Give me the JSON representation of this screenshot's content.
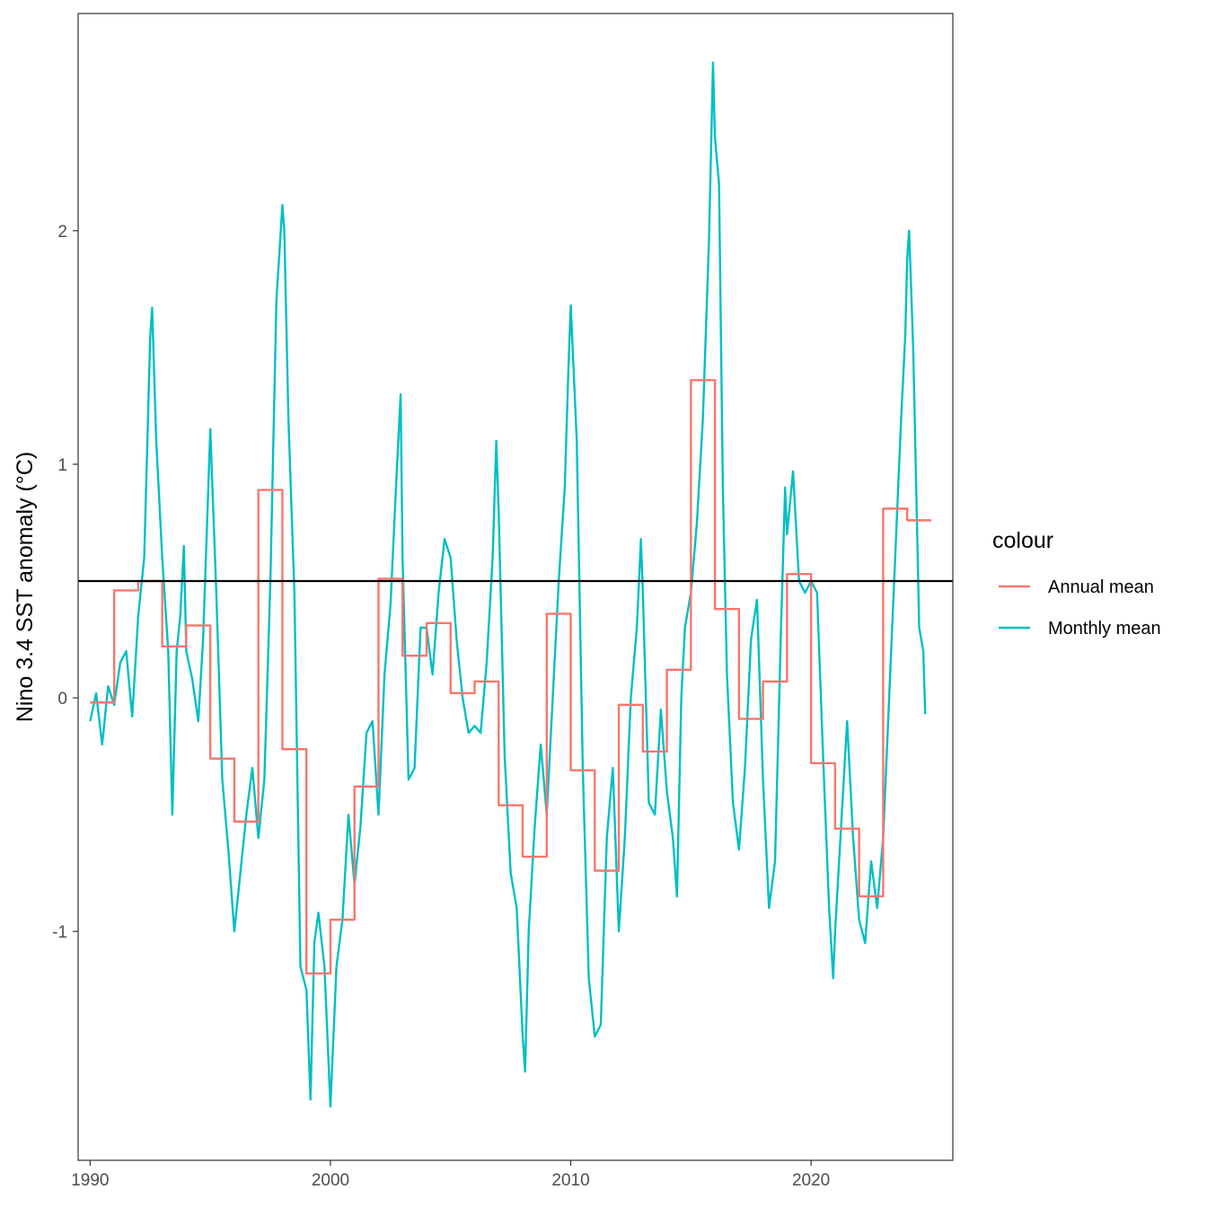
{
  "chart_data": {
    "type": "line",
    "title": "",
    "xlabel": "",
    "ylabel": "Nino 3.4 SST anomaly (°C)",
    "xlim": [
      1989.5,
      2025.9
    ],
    "ylim": [
      -1.98,
      2.93
    ],
    "x_ticks": [
      1990,
      2000,
      2010,
      2020
    ],
    "x_tick_labels": [
      "1990",
      "2000",
      "2010",
      "2020"
    ],
    "y_ticks": [
      -1,
      0,
      1,
      2
    ],
    "y_tick_labels": [
      "-1",
      "0",
      "1",
      "2"
    ],
    "grid": false,
    "legend": {
      "title": "colour",
      "position": "right"
    },
    "reference_line": {
      "y": 0.5,
      "color": "#000000"
    },
    "series": [
      {
        "name": "Annual mean",
        "color": "#F8766D",
        "style": "step",
        "years": [
          1990,
          1991,
          1992,
          1993,
          1994,
          1995,
          1996,
          1997,
          1998,
          1999,
          2000,
          2001,
          2002,
          2003,
          2004,
          2005,
          2006,
          2007,
          2008,
          2009,
          2010,
          2011,
          2012,
          2013,
          2014,
          2015,
          2016,
          2017,
          2018,
          2019,
          2020,
          2021,
          2022,
          2023,
          2024
        ],
        "values": [
          -0.02,
          0.46,
          0.5,
          0.22,
          0.31,
          -0.26,
          -0.53,
          0.89,
          -0.22,
          -1.18,
          -0.95,
          -0.38,
          0.51,
          0.18,
          0.32,
          0.02,
          0.07,
          -0.46,
          -0.68,
          0.36,
          -0.31,
          -0.74,
          -0.03,
          -0.23,
          0.12,
          1.36,
          0.38,
          -0.09,
          0.07,
          0.53,
          -0.28,
          -0.56,
          -0.85,
          0.81,
          0.76
        ]
      },
      {
        "name": "Monthly mean",
        "color": "#00BFC4",
        "style": "line",
        "points": [
          [
            1990.0,
            -0.1
          ],
          [
            1990.25,
            0.02
          ],
          [
            1990.5,
            -0.2
          ],
          [
            1990.75,
            0.05
          ],
          [
            1991.0,
            -0.03
          ],
          [
            1991.25,
            0.15
          ],
          [
            1991.5,
            0.2
          ],
          [
            1991.75,
            -0.08
          ],
          [
            1992.0,
            0.35
          ],
          [
            1992.25,
            0.6
          ],
          [
            1992.5,
            1.55
          ],
          [
            1992.58,
            1.67
          ],
          [
            1992.75,
            1.1
          ],
          [
            1993.0,
            0.6
          ],
          [
            1993.25,
            0.2
          ],
          [
            1993.42,
            -0.5
          ],
          [
            1993.6,
            0.2
          ],
          [
            1993.75,
            0.35
          ],
          [
            1993.9,
            0.65
          ],
          [
            1994.0,
            0.2
          ],
          [
            1994.25,
            0.08
          ],
          [
            1994.5,
            -0.1
          ],
          [
            1994.7,
            0.25
          ],
          [
            1995.0,
            1.15
          ],
          [
            1995.25,
            0.45
          ],
          [
            1995.5,
            -0.35
          ],
          [
            1995.75,
            -0.65
          ],
          [
            1996.0,
            -1.0
          ],
          [
            1996.25,
            -0.75
          ],
          [
            1996.5,
            -0.5
          ],
          [
            1996.75,
            -0.3
          ],
          [
            1997.0,
            -0.6
          ],
          [
            1997.25,
            -0.35
          ],
          [
            1997.5,
            0.5
          ],
          [
            1997.75,
            1.7
          ],
          [
            1998.0,
            2.11
          ],
          [
            1998.08,
            2.0
          ],
          [
            1998.25,
            1.2
          ],
          [
            1998.5,
            0.45
          ],
          [
            1998.75,
            -1.15
          ],
          [
            1999.0,
            -1.25
          ],
          [
            1999.17,
            -1.72
          ],
          [
            1999.33,
            -1.05
          ],
          [
            1999.5,
            -0.92
          ],
          [
            1999.75,
            -1.15
          ],
          [
            2000.0,
            -1.75
          ],
          [
            2000.25,
            -1.15
          ],
          [
            2000.5,
            -0.95
          ],
          [
            2000.75,
            -0.5
          ],
          [
            2001.0,
            -0.8
          ],
          [
            2001.25,
            -0.55
          ],
          [
            2001.5,
            -0.15
          ],
          [
            2001.75,
            -0.1
          ],
          [
            2002.0,
            -0.5
          ],
          [
            2002.25,
            0.1
          ],
          [
            2002.5,
            0.4
          ],
          [
            2002.75,
            0.95
          ],
          [
            2002.92,
            1.3
          ],
          [
            2003.0,
            0.6
          ],
          [
            2003.25,
            -0.35
          ],
          [
            2003.5,
            -0.3
          ],
          [
            2003.75,
            0.3
          ],
          [
            2004.0,
            0.3
          ],
          [
            2004.25,
            0.1
          ],
          [
            2004.5,
            0.45
          ],
          [
            2004.75,
            0.68
          ],
          [
            2005.0,
            0.6
          ],
          [
            2005.25,
            0.25
          ],
          [
            2005.5,
            0.0
          ],
          [
            2005.75,
            -0.15
          ],
          [
            2006.0,
            -0.12
          ],
          [
            2006.25,
            -0.15
          ],
          [
            2006.5,
            0.15
          ],
          [
            2006.75,
            0.6
          ],
          [
            2006.9,
            1.1
          ],
          [
            2007.0,
            0.8
          ],
          [
            2007.25,
            -0.25
          ],
          [
            2007.5,
            -0.75
          ],
          [
            2007.75,
            -0.9
          ],
          [
            2008.0,
            -1.45
          ],
          [
            2008.1,
            -1.6
          ],
          [
            2008.25,
            -1.0
          ],
          [
            2008.5,
            -0.55
          ],
          [
            2008.75,
            -0.2
          ],
          [
            2009.0,
            -0.5
          ],
          [
            2009.25,
            0.0
          ],
          [
            2009.5,
            0.5
          ],
          [
            2009.75,
            0.9
          ],
          [
            2009.9,
            1.4
          ],
          [
            2010.0,
            1.68
          ],
          [
            2010.25,
            1.1
          ],
          [
            2010.5,
            -0.3
          ],
          [
            2010.75,
            -1.2
          ],
          [
            2011.0,
            -1.45
          ],
          [
            2011.25,
            -1.4
          ],
          [
            2011.5,
            -0.6
          ],
          [
            2011.75,
            -0.3
          ],
          [
            2012.0,
            -1.0
          ],
          [
            2012.25,
            -0.6
          ],
          [
            2012.5,
            0.0
          ],
          [
            2012.75,
            0.3
          ],
          [
            2012.92,
            0.68
          ],
          [
            2013.0,
            0.45
          ],
          [
            2013.25,
            -0.45
          ],
          [
            2013.5,
            -0.5
          ],
          [
            2013.75,
            -0.05
          ],
          [
            2014.0,
            -0.4
          ],
          [
            2014.25,
            -0.6
          ],
          [
            2014.42,
            -0.85
          ],
          [
            2014.6,
            0.0
          ],
          [
            2014.75,
            0.3
          ],
          [
            2015.0,
            0.45
          ],
          [
            2015.25,
            0.75
          ],
          [
            2015.5,
            1.2
          ],
          [
            2015.75,
            1.95
          ],
          [
            2015.92,
            2.72
          ],
          [
            2016.0,
            2.4
          ],
          [
            2016.17,
            2.2
          ],
          [
            2016.33,
            0.9
          ],
          [
            2016.5,
            0.1
          ],
          [
            2016.75,
            -0.45
          ],
          [
            2017.0,
            -0.65
          ],
          [
            2017.25,
            -0.3
          ],
          [
            2017.5,
            0.25
          ],
          [
            2017.75,
            0.42
          ],
          [
            2018.0,
            -0.35
          ],
          [
            2018.25,
            -0.9
          ],
          [
            2018.5,
            -0.7
          ],
          [
            2018.75,
            0.3
          ],
          [
            2018.92,
            0.9
          ],
          [
            2019.0,
            0.7
          ],
          [
            2019.25,
            0.97
          ],
          [
            2019.5,
            0.5
          ],
          [
            2019.75,
            0.45
          ],
          [
            2020.0,
            0.5
          ],
          [
            2020.25,
            0.45
          ],
          [
            2020.5,
            -0.25
          ],
          [
            2020.75,
            -0.9
          ],
          [
            2020.92,
            -1.2
          ],
          [
            2021.0,
            -1.0
          ],
          [
            2021.25,
            -0.55
          ],
          [
            2021.5,
            -0.1
          ],
          [
            2021.75,
            -0.6
          ],
          [
            2022.0,
            -0.95
          ],
          [
            2022.25,
            -1.05
          ],
          [
            2022.5,
            -0.7
          ],
          [
            2022.75,
            -0.9
          ],
          [
            2023.0,
            -0.6
          ],
          [
            2023.25,
            0.0
          ],
          [
            2023.5,
            0.6
          ],
          [
            2023.75,
            1.2
          ],
          [
            2023.92,
            1.55
          ],
          [
            2024.0,
            1.88
          ],
          [
            2024.08,
            2.0
          ],
          [
            2024.25,
            1.5
          ],
          [
            2024.5,
            0.3
          ],
          [
            2024.67,
            0.2
          ],
          [
            2024.75,
            -0.07
          ]
        ]
      }
    ]
  }
}
